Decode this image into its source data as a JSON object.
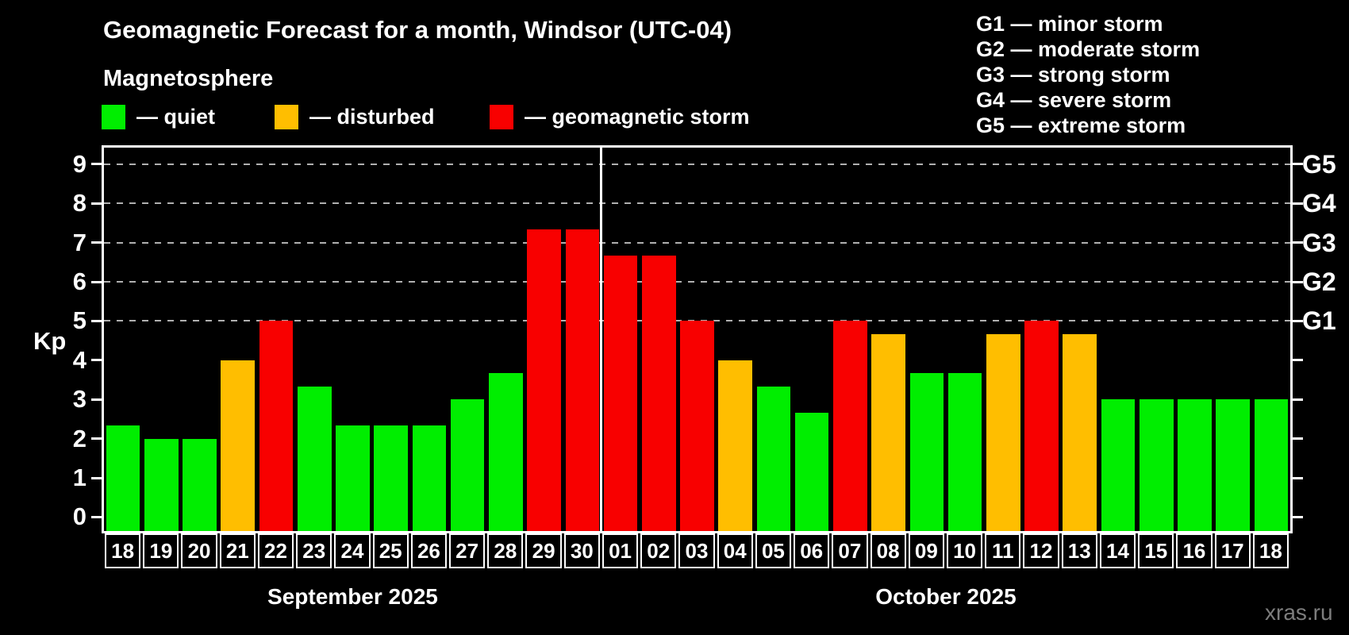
{
  "chart": {
    "title": "Geomagnetic Forecast for a month, Windsor (UTC-04)",
    "subtitle": "Magnetosphere",
    "y_axis_label": "Kp",
    "watermark": "xras.ru"
  },
  "colors": {
    "quiet": "#00ee00",
    "disturbed": "#ffbe00",
    "storm": "#f80000",
    "background": "#000000",
    "grid": "#b0b0b0",
    "axis": "#ffffff",
    "watermark": "#7d7d7d"
  },
  "legend": {
    "items": [
      {
        "key": "quiet",
        "label": "— quiet"
      },
      {
        "key": "disturbed",
        "label": "— disturbed"
      },
      {
        "key": "storm",
        "label": "— geomagnetic storm"
      }
    ]
  },
  "g_scale_legend": {
    "items": [
      {
        "label": "G1 — minor storm"
      },
      {
        "label": "G2 — moderate storm"
      },
      {
        "label": "G3 — strong storm"
      },
      {
        "label": "G4 — severe storm"
      },
      {
        "label": "G5 — extreme storm"
      }
    ]
  },
  "chart_data": {
    "type": "bar",
    "title": "Geomagnetic Forecast for a month, Windsor (UTC-04)",
    "xlabel": "",
    "ylabel": "Kp",
    "ylim": [
      0,
      9
    ],
    "y_ticks": [
      0,
      1,
      2,
      3,
      4,
      5,
      6,
      7,
      8,
      9
    ],
    "gridlines_at": [
      5,
      6,
      7,
      8,
      9
    ],
    "grid": "dashed, only at Kp 5-9",
    "legend_position": "top-left",
    "right_axis_labels": [
      {
        "kp": 5,
        "label": "G1"
      },
      {
        "kp": 6,
        "label": "G2"
      },
      {
        "kp": 7,
        "label": "G3"
      },
      {
        "kp": 8,
        "label": "G4"
      },
      {
        "kp": 9,
        "label": "G5"
      }
    ],
    "months": [
      {
        "label": "September 2025",
        "days": 13
      },
      {
        "label": "October 2025",
        "days": 18
      }
    ],
    "bars": [
      {
        "day": "18",
        "month": "September 2025",
        "kp": 2.33,
        "status": "quiet"
      },
      {
        "day": "19",
        "month": "September 2025",
        "kp": 2.0,
        "status": "quiet"
      },
      {
        "day": "20",
        "month": "September 2025",
        "kp": 2.0,
        "status": "quiet"
      },
      {
        "day": "21",
        "month": "September 2025",
        "kp": 4.0,
        "status": "disturbed"
      },
      {
        "day": "22",
        "month": "September 2025",
        "kp": 5.0,
        "status": "storm"
      },
      {
        "day": "23",
        "month": "September 2025",
        "kp": 3.33,
        "status": "quiet"
      },
      {
        "day": "24",
        "month": "September 2025",
        "kp": 2.33,
        "status": "quiet"
      },
      {
        "day": "25",
        "month": "September 2025",
        "kp": 2.33,
        "status": "quiet"
      },
      {
        "day": "26",
        "month": "September 2025",
        "kp": 2.33,
        "status": "quiet"
      },
      {
        "day": "27",
        "month": "September 2025",
        "kp": 3.0,
        "status": "quiet"
      },
      {
        "day": "28",
        "month": "September 2025",
        "kp": 3.67,
        "status": "quiet"
      },
      {
        "day": "29",
        "month": "September 2025",
        "kp": 7.33,
        "status": "storm"
      },
      {
        "day": "30",
        "month": "September 2025",
        "kp": 7.33,
        "status": "storm"
      },
      {
        "day": "01",
        "month": "October 2025",
        "kp": 6.67,
        "status": "storm"
      },
      {
        "day": "02",
        "month": "October 2025",
        "kp": 6.67,
        "status": "storm"
      },
      {
        "day": "03",
        "month": "October 2025",
        "kp": 5.0,
        "status": "storm"
      },
      {
        "day": "04",
        "month": "October 2025",
        "kp": 4.0,
        "status": "disturbed"
      },
      {
        "day": "05",
        "month": "October 2025",
        "kp": 3.33,
        "status": "quiet"
      },
      {
        "day": "06",
        "month": "October 2025",
        "kp": 2.67,
        "status": "quiet"
      },
      {
        "day": "07",
        "month": "October 2025",
        "kp": 5.0,
        "status": "storm"
      },
      {
        "day": "08",
        "month": "October 2025",
        "kp": 4.67,
        "status": "disturbed"
      },
      {
        "day": "09",
        "month": "October 2025",
        "kp": 3.67,
        "status": "quiet"
      },
      {
        "day": "10",
        "month": "October 2025",
        "kp": 3.67,
        "status": "quiet"
      },
      {
        "day": "11",
        "month": "October 2025",
        "kp": 4.67,
        "status": "disturbed"
      },
      {
        "day": "12",
        "month": "October 2025",
        "kp": 5.0,
        "status": "storm"
      },
      {
        "day": "13",
        "month": "October 2025",
        "kp": 4.67,
        "status": "disturbed"
      },
      {
        "day": "14",
        "month": "October 2025",
        "kp": 3.0,
        "status": "quiet"
      },
      {
        "day": "15",
        "month": "October 2025",
        "kp": 3.0,
        "status": "quiet"
      },
      {
        "day": "16",
        "month": "October 2025",
        "kp": 3.0,
        "status": "quiet"
      },
      {
        "day": "17",
        "month": "October 2025",
        "kp": 3.0,
        "status": "quiet"
      },
      {
        "day": "18",
        "month": "October 2025",
        "kp": 3.0,
        "status": "quiet"
      }
    ]
  }
}
